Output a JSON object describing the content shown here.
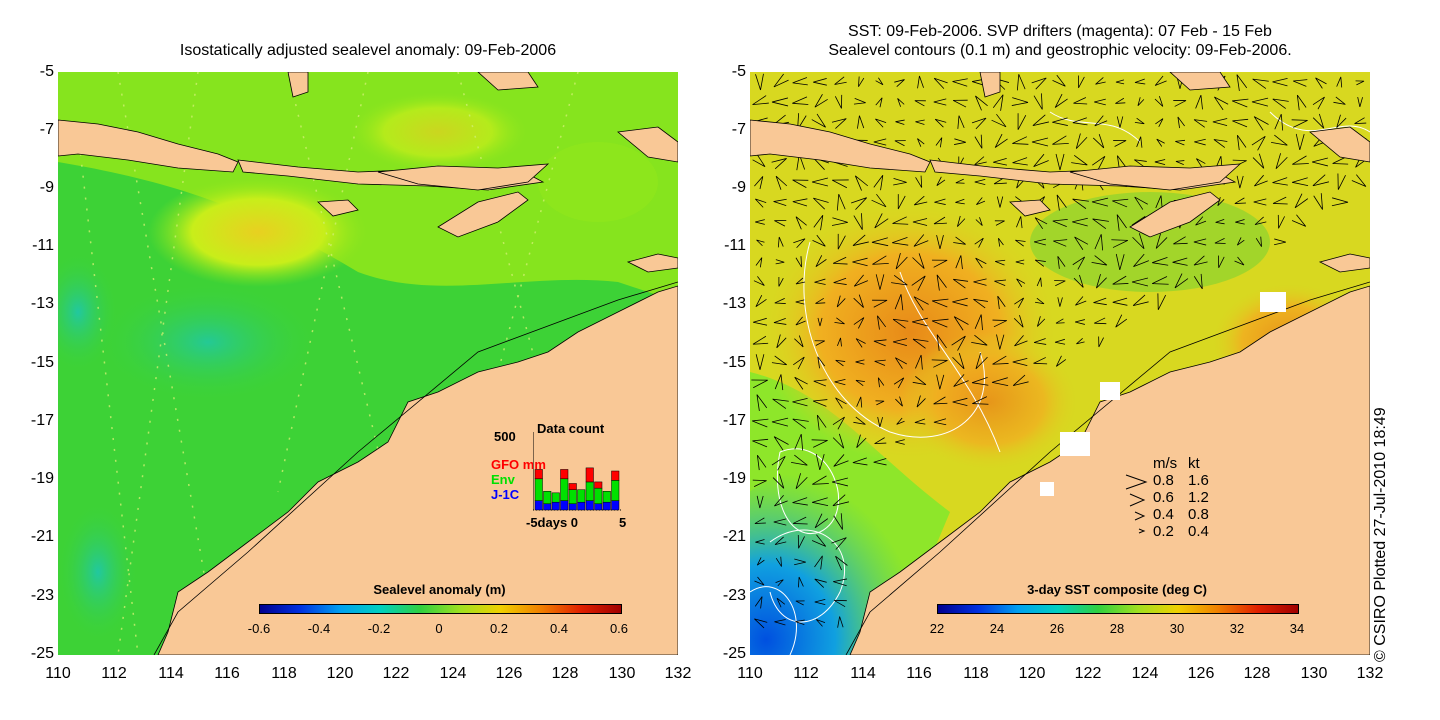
{
  "left_panel": {
    "title": "Isostatically adjusted sealevel anomaly: 09-Feb-2006",
    "y_ticks": [
      "-5",
      "-7",
      "-9",
      "-11",
      "-13",
      "-15",
      "-17",
      "-19",
      "-21",
      "-23",
      "-25"
    ],
    "x_ticks": [
      "110",
      "112",
      "114",
      "116",
      "118",
      "120",
      "122",
      "124",
      "126",
      "128",
      "130",
      "132"
    ],
    "colorbar": {
      "title": "Sealevel anomaly (m)",
      "labels": [
        "-0.6",
        "-0.4",
        "-0.2",
        "0",
        "0.2",
        "0.4",
        "0.6"
      ],
      "min": -0.6,
      "max": 0.6
    },
    "data_count": {
      "title": "Data count",
      "ymax_label": "500",
      "x_label": "-5days 0",
      "x_end_label": "5",
      "missions": [
        {
          "name": "GFO mm",
          "color": "#ff0000"
        },
        {
          "name": "Env",
          "color": "#00e000"
        },
        {
          "name": "J-1C",
          "color": "#0000ff"
        }
      ],
      "bars": [
        {
          "J-1C": 60,
          "Env": 140,
          "GFO mm": 60
        },
        {
          "J-1C": 40,
          "Env": 80,
          "GFO mm": 0
        },
        {
          "J-1C": 50,
          "Env": 60,
          "GFO mm": 0
        },
        {
          "J-1C": 60,
          "Env": 140,
          "GFO mm": 60
        },
        {
          "J-1C": 40,
          "Env": 90,
          "GFO mm": 40
        },
        {
          "J-1C": 50,
          "Env": 80,
          "GFO mm": 0
        },
        {
          "J-1C": 60,
          "Env": 120,
          "GFO mm": 90
        },
        {
          "J-1C": 40,
          "Env": 100,
          "GFO mm": 40
        },
        {
          "J-1C": 50,
          "Env": 70,
          "GFO mm": 0
        },
        {
          "J-1C": 60,
          "Env": 130,
          "GFO mm": 60
        }
      ]
    }
  },
  "right_panel": {
    "title_line1": "SST: 09-Feb-2006. SVP drifters (magenta): 07 Feb - 15 Feb",
    "title_line2": "Sealevel contours (0.1 m) and geostrophic velocity: 09-Feb-2006.",
    "y_ticks": [
      "-5",
      "-7",
      "-9",
      "-11",
      "-13",
      "-15",
      "-17",
      "-19",
      "-21",
      "-23",
      "-25"
    ],
    "x_ticks": [
      "110",
      "112",
      "114",
      "116",
      "118",
      "120",
      "122",
      "124",
      "126",
      "128",
      "130",
      "132"
    ],
    "colorbar": {
      "title": "3-day SST composite (deg C)",
      "labels": [
        "22",
        "24",
        "26",
        "28",
        "30",
        "32",
        "34"
      ],
      "min": 22,
      "max": 34
    },
    "velocity_legend": {
      "header_ms": "m/s",
      "header_kt": "kt",
      "rows": [
        {
          "ms": "0.8",
          "kt": "1.6"
        },
        {
          "ms": "0.6",
          "kt": "1.2"
        },
        {
          "ms": "0.4",
          "kt": "0.8"
        },
        {
          "ms": "0.2",
          "kt": "0.4"
        }
      ]
    }
  },
  "credit": "© CSIRO Plotted 27-Jul-2010 18:49",
  "colors": {
    "land": "#f9c896",
    "ocean_base": "#3dd236",
    "ocean_light": "#8ee61c",
    "ocean_yellow": "#c8ee1a"
  }
}
